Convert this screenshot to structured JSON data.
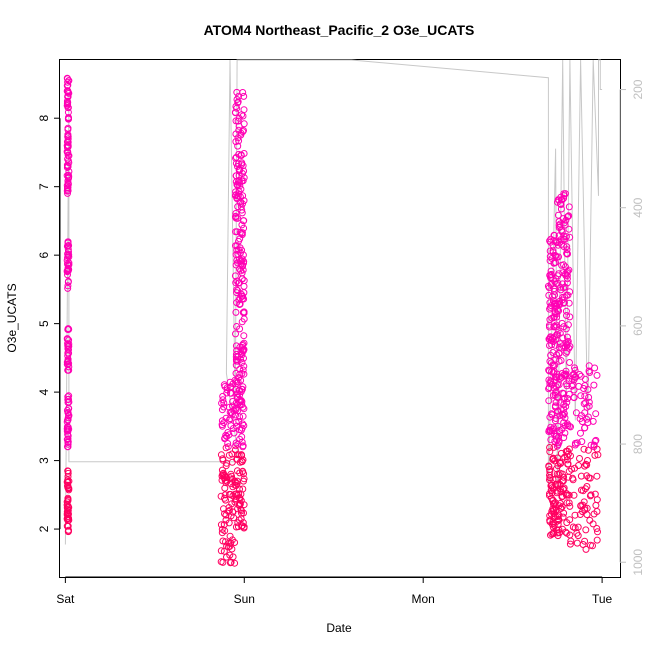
{
  "chart_data": {
    "type": "scatter",
    "title": "ATOM4 Northeast_Pacific_2 O3e_UCATS",
    "xlabel": "Date",
    "ylabel": "O3e_UCATS",
    "xlim": [
      -0.03,
      3.1
    ],
    "ylim": [
      1.3,
      8.85
    ],
    "x_ticks": [
      {
        "value": 0,
        "label": "Sat"
      },
      {
        "value": 1,
        "label": "Sun"
      },
      {
        "value": 2,
        "label": "Mon"
      },
      {
        "value": 3,
        "label": "Tue"
      }
    ],
    "y_ticks": [
      2,
      3,
      4,
      5,
      6,
      7,
      8
    ],
    "y2_ticks": [
      200,
      400,
      600,
      800,
      1000
    ],
    "y2lim": [
      1025,
      150
    ],
    "grid": false,
    "point_color": "#ff00b4",
    "point_color_dense": "#ff0060",
    "line_color": "#c8c8c8",
    "series": [
      {
        "role": "points",
        "segments": [
          {
            "x": [
              0.01,
              0.02
            ],
            "y_ranges": [
              [
                6.9,
                8.6
              ],
              [
                5.5,
                6.2
              ],
              [
                4.3,
                4.95
              ],
              [
                3.2,
                3.95
              ],
              [
                1.9,
                2.9
              ]
            ]
          },
          {
            "x": [
              0.87,
              0.95
            ],
            "y_ranges": [
              [
                1.5,
                2.5
              ],
              [
                2.5,
                4.2
              ]
            ]
          },
          {
            "x": [
              0.95,
              1.0
            ],
            "y_ranges": [
              [
                2.0,
                4.0
              ],
              [
                4.0,
                6.5
              ],
              [
                6.5,
                8.4
              ]
            ]
          },
          {
            "x": [
              2.7,
              2.75
            ],
            "y_ranges": [
              [
                1.9,
                3.3
              ],
              [
                3.3,
                5.2
              ],
              [
                5.2,
                6.3
              ]
            ]
          },
          {
            "x": [
              2.75,
              2.82
            ],
            "y_ranges": [
              [
                1.9,
                3.4
              ],
              [
                3.4,
                5.8
              ],
              [
                5.8,
                6.9
              ]
            ]
          },
          {
            "x": [
              2.82,
              2.98
            ],
            "y_ranges": [
              [
                1.7,
                2.8
              ],
              [
                2.8,
                4.4
              ]
            ]
          }
        ]
      },
      {
        "role": "line",
        "points": [
          [
            0.0,
            970
          ],
          [
            0.02,
            210
          ],
          [
            0.02,
            830
          ],
          [
            0.97,
            830
          ],
          [
            0.9,
            680
          ],
          [
            0.92,
            150
          ],
          [
            0.95,
            740
          ],
          [
            0.96,
            150
          ],
          [
            1.0,
            150
          ],
          [
            1.6,
            150
          ],
          [
            2.7,
            180
          ],
          [
            2.7,
            880
          ],
          [
            2.74,
            300
          ],
          [
            2.75,
            880
          ],
          [
            2.78,
            150
          ],
          [
            2.8,
            740
          ],
          [
            2.82,
            150
          ],
          [
            2.85,
            760
          ],
          [
            2.88,
            150
          ],
          [
            2.92,
            760
          ],
          [
            2.95,
            150
          ],
          [
            2.98,
            380
          ],
          [
            2.98,
            150
          ],
          [
            2.99,
            150
          ],
          [
            2.99,
            200
          ],
          [
            3.0,
            200
          ]
        ]
      }
    ]
  }
}
